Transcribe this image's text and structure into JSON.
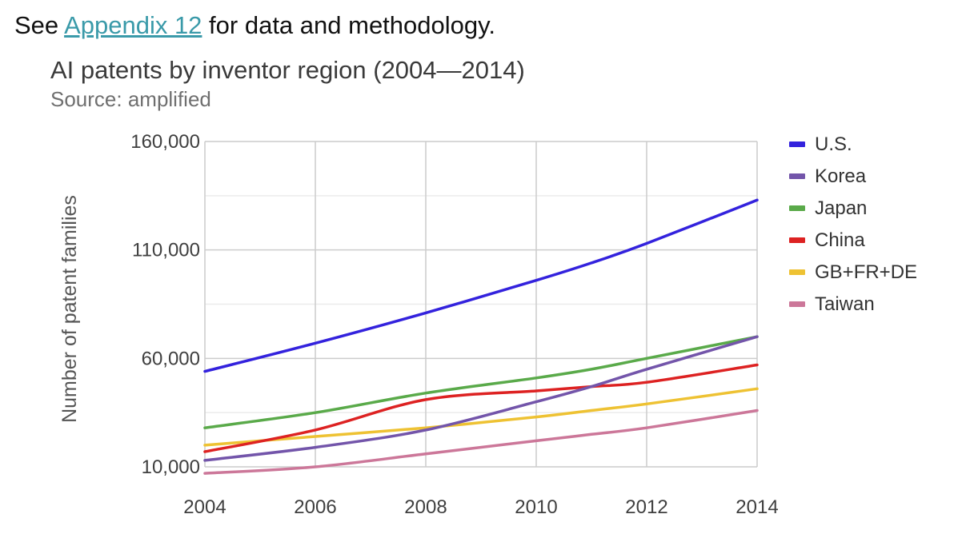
{
  "header": {
    "prefix": "See ",
    "link_text": "Appendix 12",
    "suffix": " for data and methodology."
  },
  "chart_data": {
    "type": "line",
    "title": "AI patents by inventor region (2004—2014)",
    "subtitle": "Source: amplified",
    "xlabel": "",
    "ylabel": "Number of patent families",
    "x": [
      2004,
      2006,
      2008,
      2010,
      2011,
      2012,
      2014
    ],
    "xticks": [
      "2004",
      "2006",
      "2008",
      "2010",
      "2012",
      "2014"
    ],
    "xtick_values": [
      2004,
      2006,
      2008,
      2010,
      2012,
      2014
    ],
    "yticks": [
      "10,000",
      "60,000",
      "110,000",
      "160,000"
    ],
    "ytick_values": [
      10000,
      60000,
      110000,
      160000
    ],
    "xlim": [
      2004,
      2014
    ],
    "ylim": [
      10000,
      160000
    ],
    "grid": true,
    "legend_position": "right",
    "series": [
      {
        "name": "U.S.",
        "color": "#3322dd",
        "values": [
          54000,
          67000,
          81000,
          96000,
          104000,
          113000,
          133000
        ]
      },
      {
        "name": "Korea",
        "color": "#7355aa",
        "values": [
          13000,
          19000,
          27000,
          40000,
          47000,
          55000,
          70000
        ]
      },
      {
        "name": "Japan",
        "color": "#5aaa4a",
        "values": [
          28000,
          35000,
          44000,
          51000,
          55000,
          60000,
          70000
        ]
      },
      {
        "name": "China",
        "color": "#dd2222",
        "values": [
          17000,
          27000,
          41000,
          45000,
          47000,
          49000,
          57000
        ]
      },
      {
        "name": "GB+FR+DE",
        "color": "#eec233",
        "values": [
          20000,
          24000,
          28000,
          33000,
          36000,
          39000,
          46000
        ]
      },
      {
        "name": "Taiwan",
        "color": "#cc7799",
        "values": [
          7000,
          10000,
          16000,
          22000,
          25000,
          28000,
          36000
        ]
      }
    ]
  }
}
